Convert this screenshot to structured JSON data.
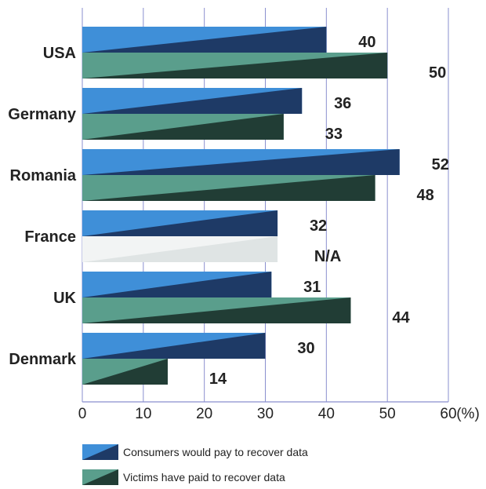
{
  "chart_data": {
    "type": "bar",
    "orientation": "horizontal",
    "categories": [
      "USA",
      "Germany",
      "Romania",
      "France",
      "UK",
      "Denmark"
    ],
    "series": [
      {
        "name": "Consumers would pay to recover data",
        "values": [
          40,
          36,
          52,
          32,
          31,
          30
        ],
        "labels": [
          "40",
          "36",
          "52",
          "32",
          "31",
          "30"
        ]
      },
      {
        "name": "Victims have paid to recover data",
        "values": [
          50,
          33,
          48,
          null,
          44,
          14
        ],
        "labels": [
          "50",
          "33",
          "48",
          "N/A",
          "44",
          "14"
        ]
      }
    ],
    "xlim": [
      0,
      60
    ],
    "xticks": [
      "0",
      "10",
      "20",
      "30",
      "40",
      "50",
      "60"
    ],
    "x_unit": "(%)",
    "grid": true,
    "legend_position": "bottom",
    "colors": {
      "series1_light": "#3f8fd8",
      "series1_dark": "#1e3a66",
      "series2_light": "#5a9e8c",
      "series2_dark": "#213d35",
      "na_light": "#f2f4f4",
      "na_dark": "#dfe4e4",
      "grid": "#8a8fcf"
    }
  }
}
